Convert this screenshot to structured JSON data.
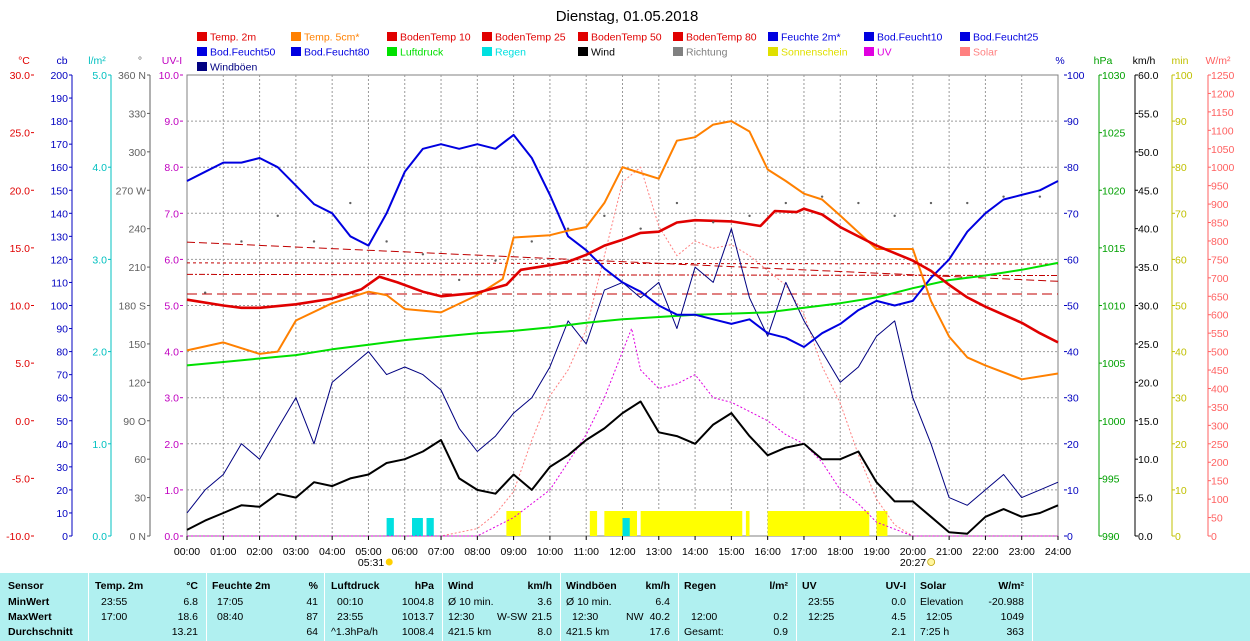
{
  "chart_data": {
    "type": "line",
    "title": "Dienstag, 01.05.2018",
    "x_ticks": [
      "00:00",
      "01:00",
      "02:00",
      "03:00",
      "04:00",
      "05:00",
      "06:00",
      "07:00",
      "08:00",
      "09:00",
      "10:00",
      "11:00",
      "12:00",
      "13:00",
      "14:00",
      "15:00",
      "16:00",
      "17:00",
      "18:00",
      "19:00",
      "20:00",
      "21:00",
      "22:00",
      "23:00",
      "24:00"
    ],
    "sunrise": "05:31",
    "sunset": "20:27",
    "legend": [
      {
        "name": "Temp. 2m",
        "color": "#e00000"
      },
      {
        "name": "Temp. 5cm*",
        "color": "#ff8000"
      },
      {
        "name": "BodenTemp 10",
        "color": "#e00000"
      },
      {
        "name": "BodenTemp 25",
        "color": "#e00000"
      },
      {
        "name": "BodenTemp 50",
        "color": "#e00000"
      },
      {
        "name": "BodenTemp 80",
        "color": "#e00000"
      },
      {
        "name": "Feuchte 2m*",
        "color": "#0000e0"
      },
      {
        "name": "Bod.Feucht10",
        "color": "#0000e0"
      },
      {
        "name": "Bod.Feucht25",
        "color": "#0000e0"
      },
      {
        "name": "Bod.Feucht50",
        "color": "#0000e0"
      },
      {
        "name": "Bod.Feucht80",
        "color": "#0000e0"
      },
      {
        "name": "Luftdruck",
        "color": "#00e000"
      },
      {
        "name": "Regen",
        "color": "#00e0e0"
      },
      {
        "name": "Wind",
        "color": "#000000"
      },
      {
        "name": "Richtung",
        "color": "#808080"
      },
      {
        "name": "Sonnenschein",
        "color": "#e0e000"
      },
      {
        "name": "UV",
        "color": "#e000e0"
      },
      {
        "name": "Solar",
        "color": "#ff8080"
      },
      {
        "name": "Windböen",
        "color": "#000080"
      }
    ],
    "axes": [
      {
        "unit": "°C",
        "color": "#e00000",
        "ticks": [
          "30.0",
          "25.0",
          "20.0",
          "15.0",
          "10.0",
          "5.0",
          "0.0",
          "-5.0",
          "-10.0"
        ]
      },
      {
        "unit": "cb",
        "color": "#0000c0",
        "ticks": [
          "200",
          "190",
          "180",
          "170",
          "160",
          "150",
          "140",
          "130",
          "120",
          "110",
          "100",
          "90",
          "80",
          "70",
          "60",
          "50",
          "40",
          "30",
          "20",
          "10",
          "0"
        ]
      },
      {
        "unit": "l/m²",
        "color": "#00c0c0",
        "ticks": [
          "5.0",
          "4.0",
          "3.0",
          "2.0",
          "1.0",
          "0.0"
        ]
      },
      {
        "unit": "°",
        "color": "#606060",
        "ticks": [
          "360 N",
          "330",
          "300",
          "270 W",
          "240",
          "210",
          "180 S",
          "150",
          "120",
          "90 O",
          "60",
          "30",
          "0 N"
        ]
      },
      {
        "unit": "UV-I",
        "color": "#c000c0",
        "ticks": [
          "10.0",
          "9.0",
          "8.0",
          "7.0",
          "6.0",
          "5.0",
          "4.0",
          "3.0",
          "2.0",
          "1.0",
          "0.0"
        ]
      },
      {
        "unit": "%",
        "color": "#0000c0",
        "ticks": [
          "100",
          "90",
          "80",
          "70",
          "60",
          "50",
          "40",
          "30",
          "20",
          "10",
          "0"
        ]
      },
      {
        "unit": "hPa",
        "color": "#00a000",
        "ticks": [
          "1030",
          "1025",
          "1020",
          "1015",
          "1010",
          "1005",
          "1000",
          "995",
          "990"
        ]
      },
      {
        "unit": "km/h",
        "color": "#000000",
        "ticks": [
          "60.0",
          "55.0",
          "50.0",
          "45.0",
          "40.0",
          "35.0",
          "30.0",
          "25.0",
          "20.0",
          "15.0",
          "10.0",
          "5.0",
          "0.0"
        ]
      },
      {
        "unit": "min",
        "color": "#c0c000",
        "ticks": [
          "100",
          "90",
          "80",
          "70",
          "60",
          "50",
          "40",
          "30",
          "20",
          "10",
          "0"
        ]
      },
      {
        "unit": "W/m²",
        "color": "#ff6060",
        "ticks": [
          "1250",
          "1200",
          "1150",
          "1100",
          "1050",
          "1000",
          "950",
          "900",
          "850",
          "800",
          "750",
          "700",
          "650",
          "600",
          "550",
          "500",
          "450",
          "400",
          "350",
          "300",
          "250",
          "200",
          "150",
          "100",
          "50",
          "0"
        ]
      }
    ],
    "series": [
      {
        "name": "Temp. 2m",
        "unit": "°C",
        "x": [
          0,
          1,
          1.5,
          2,
          3,
          4,
          4.8,
          5.3,
          5.8,
          6.5,
          7,
          8,
          8.8,
          9.2,
          10,
          10.5,
          11,
          11.5,
          12,
          12.5,
          13,
          13.5,
          14,
          15,
          15.8,
          16.2,
          16.8,
          17,
          17.5,
          18,
          19,
          20,
          20.5,
          21,
          21.5,
          22,
          23,
          23.5,
          24
        ],
        "y": [
          10.5,
          10.0,
          9.8,
          9.8,
          10.1,
          10.6,
          11.4,
          12.5,
          12.0,
          11.2,
          10.8,
          11.1,
          11.8,
          13.1,
          13.5,
          13.8,
          14.4,
          15.2,
          15.7,
          16.3,
          16.4,
          17.2,
          17.4,
          17.3,
          16.9,
          18.2,
          18.1,
          18.4,
          17.9,
          16.8,
          15.2,
          13.9,
          13.0,
          11.8,
          10.7,
          9.9,
          8.5,
          7.6,
          6.8
        ]
      },
      {
        "name": "Temp. 5cm*",
        "unit": "°C",
        "x": [
          0,
          1,
          2,
          2.5,
          3,
          4,
          5,
          5.5,
          6,
          7,
          8,
          8.7,
          9,
          10,
          10.5,
          11,
          11.5,
          12,
          12.5,
          13,
          13.5,
          14,
          14.5,
          15,
          15.5,
          16,
          16.5,
          17,
          17.5,
          18,
          19,
          20,
          20.5,
          21,
          21.5,
          22,
          23,
          24
        ],
        "y": [
          6.1,
          6.8,
          5.8,
          6.0,
          8.7,
          10.2,
          11.2,
          10.9,
          9.7,
          9.4,
          10.9,
          12.3,
          15.9,
          16.1,
          16.5,
          16.8,
          18.9,
          22.0,
          21.5,
          21.0,
          24.3,
          24.6,
          25.7,
          26.0,
          25.1,
          21.8,
          20.8,
          19.7,
          19.2,
          17.8,
          14.9,
          14.9,
          10.4,
          7.3,
          5.5,
          4.8,
          3.6,
          4.1
        ]
      },
      {
        "name": "BodenTemp 10",
        "unit": "°C",
        "x": [
          0,
          24
        ],
        "y": [
          15.5,
          12.1
        ]
      },
      {
        "name": "BodenTemp 25",
        "unit": "°C",
        "x": [
          0,
          24
        ],
        "y": [
          13.7,
          13.6
        ]
      },
      {
        "name": "BodenTemp 50",
        "unit": "°C",
        "x": [
          0,
          24
        ],
        "y": [
          12.7,
          12.6
        ]
      },
      {
        "name": "BodenTemp 80",
        "unit": "°C",
        "x": [
          0,
          24
        ],
        "y": [
          11.0,
          11.0
        ]
      },
      {
        "name": "Feuchte 2m*",
        "unit": "%",
        "x": [
          0,
          0.5,
          1,
          1.5,
          2,
          2.5,
          3,
          3.5,
          4,
          4.5,
          5,
          5.5,
          6,
          6.5,
          7,
          7.5,
          8,
          8.5,
          9,
          9.5,
          10,
          10.5,
          11,
          11.5,
          12,
          12.5,
          13,
          13.5,
          14,
          14.5,
          15,
          15.5,
          16,
          16.5,
          17,
          17.5,
          18,
          18.5,
          19,
          19.5,
          20,
          20.5,
          21,
          21.5,
          22,
          22.5,
          23,
          23.5,
          24
        ],
        "y": [
          77,
          79,
          81,
          81,
          82,
          80,
          76,
          72,
          70,
          65,
          63,
          70,
          79,
          84,
          85,
          84,
          85,
          84,
          87,
          82,
          74,
          65,
          62,
          58,
          55,
          53,
          50,
          48,
          48,
          47,
          46,
          47,
          44,
          43,
          41,
          44,
          46,
          49,
          51,
          50,
          51,
          56,
          60,
          66,
          70,
          73,
          74,
          75,
          77
        ]
      },
      {
        "name": "Luftdruck",
        "unit": "hPa",
        "x": [
          0,
          1,
          2,
          3,
          4,
          5,
          6,
          7,
          8,
          9,
          10,
          11,
          12,
          13,
          14,
          15,
          16,
          17,
          18,
          19,
          20,
          21,
          22,
          23,
          24
        ],
        "y": [
          1004.8,
          1005.1,
          1005.4,
          1005.7,
          1006.2,
          1006.6,
          1007.0,
          1007.3,
          1007.6,
          1007.8,
          1008.1,
          1008.5,
          1008.8,
          1009.0,
          1009.2,
          1009.3,
          1009.4,
          1009.8,
          1010.2,
          1010.7,
          1011.5,
          1012.2,
          1012.6,
          1013.1,
          1013.7
        ]
      },
      {
        "name": "Wind",
        "unit": "km/h",
        "x": [
          0,
          0.5,
          1,
          1.5,
          2,
          2.5,
          3,
          3.5,
          4,
          4.5,
          5,
          5.5,
          6,
          6.5,
          7,
          7.5,
          8,
          8.5,
          9,
          9.5,
          10,
          10.5,
          11,
          11.5,
          12,
          12.5,
          13,
          13.5,
          14,
          14.5,
          15,
          15.5,
          16,
          16.5,
          17,
          17.5,
          18,
          18.5,
          19,
          19.5,
          20,
          20.5,
          21,
          21.5,
          22,
          22.5,
          23,
          23.5,
          24
        ],
        "y": [
          0.8,
          2.0,
          3.0,
          4.0,
          3.8,
          5.5,
          5.0,
          7.0,
          6.5,
          7.5,
          8.0,
          9.5,
          10.0,
          11.0,
          12.5,
          7.5,
          6.0,
          5.5,
          8.0,
          6.0,
          9.0,
          10.5,
          12.5,
          14.0,
          16.0,
          17.5,
          13.5,
          13.0,
          12.0,
          14.5,
          16.0,
          13.0,
          10.5,
          11.5,
          12.0,
          10.0,
          10.0,
          11.0,
          7.0,
          4.5,
          4.5,
          2.5,
          0.5,
          0.3,
          2.5,
          3.5,
          2.5,
          3.0,
          4.0
        ]
      },
      {
        "name": "Windböen",
        "unit": "km/h",
        "x": [
          0,
          0.5,
          1,
          1.5,
          2,
          2.5,
          3,
          3.5,
          4,
          4.5,
          5,
          5.5,
          6,
          6.5,
          7,
          7.5,
          8,
          8.5,
          9,
          9.5,
          10,
          10.5,
          11,
          11.5,
          12,
          12.5,
          13,
          13.5,
          14,
          14.5,
          15,
          15.5,
          16,
          16.5,
          17,
          17.5,
          18,
          18.5,
          19,
          19.5,
          20,
          20.5,
          21,
          21.5,
          22,
          22.5,
          23,
          23.5,
          24
        ],
        "y": [
          3,
          6,
          8,
          12,
          10,
          14,
          18,
          12,
          20,
          22,
          24,
          21,
          22,
          21,
          19,
          14,
          11,
          13,
          16,
          18,
          22,
          28,
          25,
          32,
          33,
          31,
          33,
          27,
          35,
          33,
          40,
          31,
          26,
          33,
          28,
          24,
          20,
          22,
          26,
          28,
          18,
          12,
          5,
          4,
          6,
          8,
          5,
          6,
          7
        ]
      },
      {
        "name": "UV",
        "unit": "UV-I",
        "x": [
          0,
          8,
          9,
          10,
          10.5,
          11,
          11.5,
          12,
          12.25,
          12.5,
          13,
          13.5,
          14,
          14.5,
          15,
          15.5,
          16,
          16.5,
          17,
          17.5,
          18,
          18.5,
          19,
          20,
          24
        ],
        "y": [
          0,
          0,
          0.4,
          1.0,
          1.6,
          2.2,
          3.0,
          4.0,
          4.5,
          3.6,
          3.2,
          3.3,
          3.5,
          3.0,
          2.9,
          2.7,
          2.5,
          2.2,
          2.0,
          1.6,
          1.0,
          0.7,
          0.3,
          0,
          0
        ]
      },
      {
        "name": "Solar",
        "unit": "W/m²",
        "x": [
          0,
          7,
          8,
          8.5,
          9,
          9.5,
          10,
          10.5,
          11,
          11.5,
          12,
          12.5,
          13,
          13.5,
          14,
          14.5,
          15,
          15.5,
          16,
          16.5,
          17,
          17.5,
          18,
          18.5,
          19,
          19.5,
          20,
          24
        ],
        "y": [
          0,
          0,
          20,
          60,
          120,
          260,
          380,
          450,
          560,
          760,
          960,
          1000,
          840,
          760,
          800,
          780,
          790,
          760,
          720,
          680,
          600,
          460,
          360,
          220,
          100,
          30,
          0,
          0
        ]
      }
    ],
    "rain_intervals": [
      [
        5.5,
        5.7
      ],
      [
        6.2,
        6.5
      ],
      [
        6.6,
        6.8
      ],
      [
        12.0,
        12.2
      ]
    ],
    "sunshine_intervals": [
      [
        8.8,
        9.2
      ],
      [
        11.1,
        11.3
      ],
      [
        11.5,
        12.4
      ],
      [
        12.5,
        15.3
      ],
      [
        15.4,
        15.5
      ],
      [
        16.0,
        18.8
      ],
      [
        19.0,
        19.3
      ]
    ],
    "gust_direction_marks": [
      [
        0.5,
        190
      ],
      [
        1.5,
        230
      ],
      [
        2.5,
        250
      ],
      [
        3.5,
        230
      ],
      [
        4.5,
        260
      ],
      [
        5.5,
        230
      ],
      [
        6.5,
        220
      ],
      [
        7.5,
        200
      ],
      [
        8.5,
        215
      ],
      [
        9.5,
        230
      ],
      [
        10.5,
        240
      ],
      [
        11.5,
        250
      ],
      [
        12.5,
        240
      ],
      [
        13.5,
        260
      ],
      [
        14.5,
        245
      ],
      [
        15.5,
        250
      ],
      [
        16.5,
        260
      ],
      [
        17.5,
        265
      ],
      [
        18.5,
        260
      ],
      [
        19.5,
        250
      ],
      [
        20.5,
        260
      ],
      [
        21.5,
        260
      ],
      [
        22.5,
        265
      ],
      [
        23.5,
        265
      ]
    ]
  },
  "stats": {
    "sensor": {
      "label": "Sensor",
      "rows": [
        "MinWert",
        "MaxWert",
        "Durchschnitt"
      ]
    },
    "temp": {
      "title": "Temp. 2m",
      "unit": "°C",
      "min_time": "23:55",
      "min": "6.8",
      "max_time": "17:00",
      "max": "18.6",
      "avg": "13.21"
    },
    "humidity": {
      "title": "Feuchte 2m",
      "unit": "%",
      "min_time": "17:05",
      "min": "41",
      "max_time": "08:40",
      "max": "87",
      "avg": "64"
    },
    "pressure": {
      "title": "Luftdruck",
      "unit": "hPa",
      "min_time": "00:10",
      "min": "1004.8",
      "max_time": "23:55",
      "max": "1013.7",
      "avg_label": "^1.3hPa/h",
      "avg": "1008.4"
    },
    "wind": {
      "title": "Wind",
      "unit": "km/h",
      "min_label": "Ø 10 min.",
      "min": "3.6",
      "max_time": "12:30",
      "max_dir": "W-SW",
      "max": "21.5",
      "avg_label": "421.5 km",
      "avg": "8.0"
    },
    "gusts": {
      "title": "Windböen",
      "unit": "km/h",
      "min_label": "Ø 10 min.",
      "min": "6.4",
      "max_time": "12:30",
      "max_dir": "NW",
      "max": "40.2",
      "avg_label": "421.5 km",
      "avg": "17.6"
    },
    "rain": {
      "title": "Regen",
      "unit": "l/m²",
      "max_time": "12:00",
      "max": "0.2",
      "avg_label": "Gesamt:",
      "avg": "0.9"
    },
    "uv": {
      "title": "UV",
      "unit": "UV-I",
      "min_time": "23:55",
      "min": "0.0",
      "max_time": "12:25",
      "max": "4.5",
      "avg": "2.1"
    },
    "solar": {
      "title": "Solar",
      "unit": "W/m²",
      "min_label": "Elevation",
      "min": "-20.988",
      "max_time": "12:05",
      "max": "1049",
      "avg_label": "7:25 h",
      "avg": "363"
    }
  }
}
